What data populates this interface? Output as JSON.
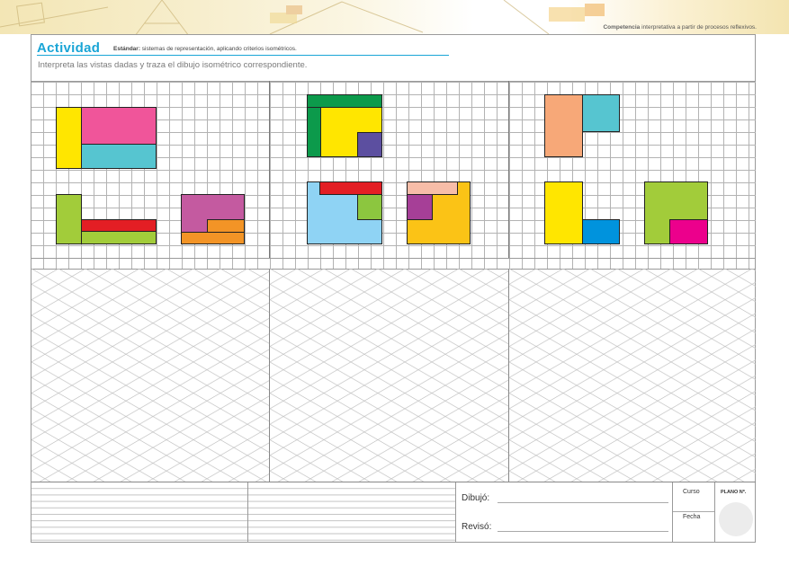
{
  "header": {
    "competencia_label": "Competencia",
    "competencia_text": "interpretativa a partir de procesos reflexivos.",
    "activity_title": "Actividad",
    "estandar_label": "Estándar:",
    "estandar_text": "sistemas de representación, aplicando criterios isométricos.",
    "instruction": "Interpreta las vistas dadas y traza el dibujo isométrico correspondiente."
  },
  "footer": {
    "dibujo_label": "Dibujó:",
    "reviso_label": "Revisó:",
    "curso_label": "Curso",
    "fecha_label": "Fecha",
    "plano_label": "PLANO Nº."
  },
  "colors": {
    "accent": "#1aa5d6",
    "yellow": "#ffe600",
    "pink": "#f0559a",
    "cyan": "#56c5d0",
    "green": "#a2cc3a",
    "red": "#e31e24",
    "magenta": "#c45aa0",
    "orange": "#f39426",
    "dark_green": "#0c9a4b",
    "purple": "#5c4fa0",
    "light_blue": "#8fd3f4",
    "mid_green": "#8cc63f",
    "salmon": "#f7bda8",
    "violet": "#a63f97",
    "amber": "#fbc316",
    "peach": "#f7a878",
    "blue": "#0093dd",
    "hot_pink": "#ec008c"
  }
}
